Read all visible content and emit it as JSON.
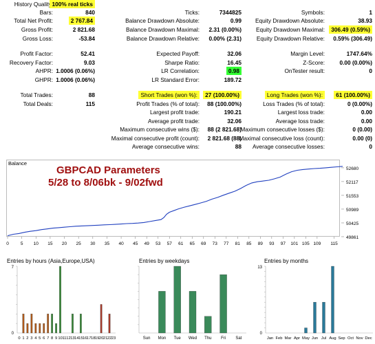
{
  "report": {
    "rows": [
      {
        "key": "quality",
        "y": 0,
        "cells": [
          [
            "History Quality:",
            ""
          ],
          [
            "100% real ticks",
            "hl"
          ]
        ]
      },
      {
        "key": "r1",
        "y": 12,
        "cells": [
          [
            "Bars:",
            ""
          ],
          [
            "840",
            ""
          ],
          [
            "Ticks:",
            ""
          ],
          [
            "7344825",
            ""
          ],
          [
            "Symbols:",
            ""
          ],
          [
            "1",
            ""
          ]
        ]
      },
      {
        "key": "r2",
        "y": 24,
        "cells": [
          [
            "Total Net Profit:",
            ""
          ],
          [
            "2 767.84",
            "hl"
          ],
          [
            "Balance Drawdown Absolute:",
            ""
          ],
          [
            "0.99",
            ""
          ],
          [
            "Equity Drawdown Absolute:",
            ""
          ],
          [
            "38.93",
            ""
          ]
        ]
      },
      {
        "key": "r3",
        "y": 37,
        "cells": [
          [
            "Gross Profit:",
            ""
          ],
          [
            "2 821.68",
            ""
          ],
          [
            "Balance Drawdown Maximal:",
            ""
          ],
          [
            "2.31 (0.00%)",
            ""
          ],
          [
            "Equity Drawdown Maximal:",
            ""
          ],
          [
            "306.49 (0.59%)",
            "hl"
          ]
        ]
      },
      {
        "key": "r4",
        "y": 50,
        "cells": [
          [
            "Gross Loss:",
            ""
          ],
          [
            "-53.84",
            ""
          ],
          [
            "Balance Drawdown Relative:",
            ""
          ],
          [
            "0.00% (2.31)",
            ""
          ],
          [
            "Equity Drawdown Relative:",
            ""
          ],
          [
            "0.59% (306.49)",
            ""
          ]
        ]
      },
      {
        "key": "r5",
        "y": 72,
        "cells": [
          [
            "Profit Factor:",
            ""
          ],
          [
            "52.41",
            ""
          ],
          [
            "Expected Payoff:",
            ""
          ],
          [
            "32.06",
            ""
          ],
          [
            "Margin Level:",
            ""
          ],
          [
            "1747.64%",
            ""
          ]
        ]
      },
      {
        "key": "r6",
        "y": 85,
        "cells": [
          [
            "Recovery Factor:",
            ""
          ],
          [
            "9.03",
            ""
          ],
          [
            "Sharpe Ratio:",
            ""
          ],
          [
            "16.45",
            ""
          ],
          [
            "Z-Score:",
            ""
          ],
          [
            "0.00 (0.00%)",
            ""
          ]
        ]
      },
      {
        "key": "r7",
        "y": 97,
        "cells": [
          [
            "AHPR:",
            ""
          ],
          [
            "1.0006 (0.06%)",
            ""
          ],
          [
            "LR Correlation:",
            ""
          ],
          [
            "0.98",
            "hlg"
          ],
          [
            "OnTester result:",
            ""
          ],
          [
            "0",
            ""
          ]
        ]
      },
      {
        "key": "r8",
        "y": 110,
        "cells": [
          [
            "GHPR:",
            ""
          ],
          [
            "1.0006 (0.06%)",
            ""
          ],
          [
            "LR Standard Error:",
            ""
          ],
          [
            "189.72",
            ""
          ],
          [
            "",
            ""
          ],
          [
            "",
            ""
          ]
        ]
      },
      {
        "key": "r9",
        "y": 132,
        "cells": [
          [
            "Total Trades:",
            ""
          ],
          [
            "88",
            ""
          ],
          [
            "Short Trades (won %):",
            "hl"
          ],
          [
            "27 (100.00%)",
            "hl"
          ],
          [
            "Long Trades (won %):",
            "hl"
          ],
          [
            "61 (100.00%)",
            "hl"
          ]
        ]
      },
      {
        "key": "r10",
        "y": 145,
        "cells": [
          [
            "Total Deals:",
            ""
          ],
          [
            "115",
            ""
          ],
          [
            "Profit Trades (% of total):",
            ""
          ],
          [
            "88 (100.00%)",
            ""
          ],
          [
            "Loss Trades (% of total):",
            ""
          ],
          [
            "0 (0.00%)",
            ""
          ]
        ]
      },
      {
        "key": "r11",
        "y": 157,
        "cells": [
          [
            "",
            ""
          ],
          [
            "",
            ""
          ],
          [
            "Largest profit trade:",
            ""
          ],
          [
            "190.21",
            ""
          ],
          [
            "Largest loss trade:",
            ""
          ],
          [
            "0.00",
            ""
          ]
        ]
      },
      {
        "key": "r12",
        "y": 170,
        "cells": [
          [
            "",
            ""
          ],
          [
            "",
            ""
          ],
          [
            "Average profit trade:",
            ""
          ],
          [
            "32.06",
            ""
          ],
          [
            "Average loss trade:",
            ""
          ],
          [
            "0.00",
            ""
          ]
        ]
      },
      {
        "key": "r13",
        "y": 182,
        "cells": [
          [
            "",
            ""
          ],
          [
            "",
            ""
          ],
          [
            "Maximum consecutive wins ($):",
            ""
          ],
          [
            "88 (2 821.68)",
            ""
          ],
          [
            "Maximum consecutive losses ($):",
            ""
          ],
          [
            "0 (0.00)",
            ""
          ]
        ]
      },
      {
        "key": "r14",
        "y": 195,
        "cells": [
          [
            "",
            ""
          ],
          [
            "",
            ""
          ],
          [
            "Maximal consecutive profit (count):",
            ""
          ],
          [
            "2 821.68 (88)",
            ""
          ],
          [
            "Maximal consecutive loss (count):",
            ""
          ],
          [
            "0.00 (0)",
            ""
          ]
        ]
      },
      {
        "key": "r15",
        "y": 207,
        "cells": [
          [
            "",
            ""
          ],
          [
            "",
            ""
          ],
          [
            "Average consecutive wins:",
            ""
          ],
          [
            "88",
            ""
          ],
          [
            "Average consecutive losses:",
            ""
          ],
          [
            "0",
            ""
          ]
        ]
      }
    ]
  },
  "balance_chart": {
    "label": "Balance",
    "annotation_line1": "GBPCAD Parameters",
    "annotation_line2": "5/28 to 8/06bk - 9/02fwd",
    "annotation_color": "#a01010",
    "line_color": "#1f3fbf",
    "y_ticks": [
      "52680",
      "52117",
      "51553",
      "50989",
      "50425",
      "49861"
    ],
    "y_tick_values": [
      52680,
      52117,
      51553,
      50989,
      50425,
      49861
    ],
    "x_ticks": [
      "0",
      "5",
      "10",
      "15",
      "20",
      "25",
      "30",
      "35",
      "40",
      "45",
      "49",
      "53",
      "57",
      "61",
      "65",
      "69",
      "73",
      "77",
      "81",
      "85",
      "89",
      "93",
      "97",
      "101",
      "105",
      "109",
      "115"
    ],
    "x_tick_values": [
      0,
      5,
      10,
      15,
      20,
      25,
      30,
      35,
      40,
      45,
      49,
      53,
      57,
      61,
      65,
      69,
      73,
      77,
      81,
      85,
      89,
      93,
      97,
      101,
      105,
      109,
      115
    ],
    "x_range": [
      0,
      118
    ],
    "y_range": [
      49861,
      52790
    ],
    "series": [
      [
        0,
        49900
      ],
      [
        2,
        49960
      ],
      [
        4,
        49990
      ],
      [
        6,
        50040
      ],
      [
        8,
        50080
      ],
      [
        10,
        50110
      ],
      [
        12,
        50150
      ],
      [
        14,
        50180
      ],
      [
        16,
        50210
      ],
      [
        18,
        50230
      ],
      [
        20,
        50250
      ],
      [
        22,
        50270
      ],
      [
        24,
        50290
      ],
      [
        26,
        50300
      ],
      [
        28,
        50310
      ],
      [
        30,
        50320
      ],
      [
        32,
        50330
      ],
      [
        34,
        50345
      ],
      [
        36,
        50355
      ],
      [
        38,
        50365
      ],
      [
        40,
        50380
      ],
      [
        42,
        50395
      ],
      [
        44,
        50405
      ],
      [
        46,
        50420
      ],
      [
        48,
        50440
      ],
      [
        50,
        50480
      ],
      [
        52,
        50520
      ],
      [
        54,
        50560
      ],
      [
        55,
        50640
      ],
      [
        56,
        50780
      ],
      [
        57,
        50860
      ],
      [
        60,
        50990
      ],
      [
        62,
        51060
      ],
      [
        64,
        51120
      ],
      [
        66,
        51180
      ],
      [
        68,
        51240
      ],
      [
        70,
        51310
      ],
      [
        72,
        51400
      ],
      [
        74,
        51470
      ],
      [
        76,
        51560
      ],
      [
        78,
        51640
      ],
      [
        80,
        51720
      ],
      [
        82,
        51830
      ],
      [
        84,
        51960
      ],
      [
        86,
        52060
      ],
      [
        88,
        52110
      ],
      [
        90,
        52140
      ],
      [
        92,
        52170
      ],
      [
        94,
        52230
      ],
      [
        96,
        52300
      ],
      [
        98,
        52420
      ],
      [
        100,
        52520
      ],
      [
        102,
        52580
      ],
      [
        104,
        52610
      ],
      [
        106,
        52630
      ],
      [
        108,
        52650
      ],
      [
        110,
        52660
      ],
      [
        112,
        52680
      ],
      [
        114,
        52700
      ],
      [
        116,
        52720
      ],
      [
        118,
        52740
      ]
    ]
  },
  "hours_chart": {
    "title": "Entries by hours (Asia,Europe,USA)",
    "y_max": 7,
    "y_tick_labels": [
      "7",
      "0"
    ],
    "labels": [
      "0",
      "1",
      "2",
      "3",
      "4",
      "5",
      "6",
      "7",
      "8",
      "9",
      "10",
      "11",
      "12",
      "13",
      "14",
      "15",
      "16",
      "17",
      "18",
      "19",
      "20",
      "21",
      "22",
      "23"
    ],
    "values": [
      0,
      2,
      1,
      2,
      1,
      1,
      1,
      2,
      2,
      1,
      7,
      0,
      0,
      2,
      0,
      2,
      0,
      0,
      0,
      0,
      3,
      0,
      2,
      0
    ],
    "colors": {
      "asia": "#b05a1a",
      "europe": "#3a8a3a",
      "usa": "#a83a2a"
    }
  },
  "weekdays_chart": {
    "title": "Entries by weekdays",
    "y_max": 8,
    "labels": [
      "Sun",
      "Mon",
      "Tue",
      "Wed",
      "Thu",
      "Fri",
      "Sat"
    ],
    "values": [
      0,
      5,
      8,
      5,
      2,
      7,
      0
    ],
    "color": "#3a8a5a"
  },
  "months_chart": {
    "title": "Entries by months",
    "y_max": 13,
    "y_tick_labels": [
      "13",
      "0"
    ],
    "labels": [
      "Jan",
      "Feb",
      "Mar",
      "Apr",
      "May",
      "Jun",
      "Jul",
      "Aug",
      "Sep",
      "Oct",
      "Nov",
      "Dec"
    ],
    "values": [
      0,
      0,
      0,
      0,
      1,
      6,
      6,
      13,
      0,
      0,
      0,
      0
    ],
    "color": "#2a7a9a"
  }
}
